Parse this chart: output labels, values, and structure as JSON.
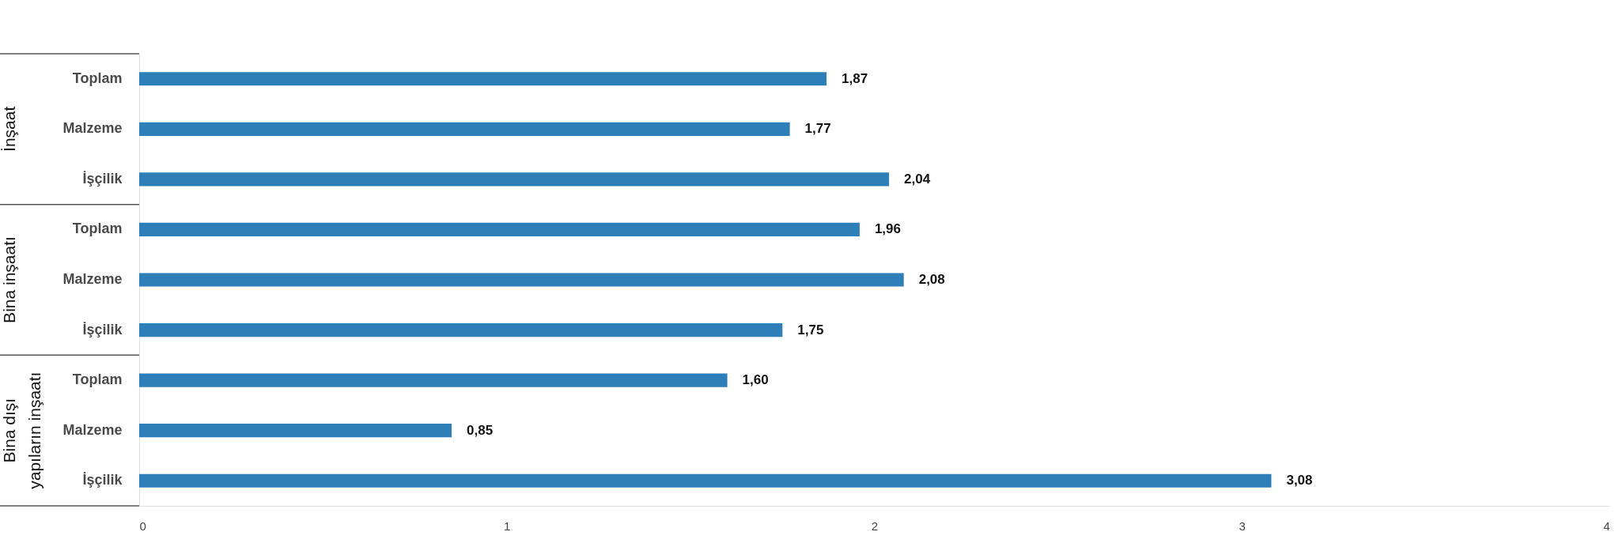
{
  "chart_data": {
    "type": "bar",
    "orientation": "horizontal",
    "categories": [
      "Toplam",
      "Malzeme",
      "İşçilik",
      "Toplam",
      "Malzeme",
      "İşçilik",
      "Toplam",
      "Malzeme",
      "İşçilik"
    ],
    "series": [
      {
        "color": "#2e7eb8",
        "values": [
          1.87,
          1.77,
          2.04,
          1.96,
          2.08,
          1.75,
          1.6,
          0.85,
          3.08
        ],
        "value_labels": [
          "1,87",
          "1,77",
          "2,04",
          "1,96",
          "2,08",
          "1,75",
          "1,60",
          "0,85",
          "3,08"
        ]
      }
    ],
    "xlim": [
      0,
      4
    ],
    "xticks": [
      0,
      1,
      2,
      3,
      4
    ],
    "grid": false,
    "legend": false,
    "annotations": [
      "İnşaat",
      "Bina inşaatı",
      "Bina dışı yapıların inşaatı"
    ]
  }
}
